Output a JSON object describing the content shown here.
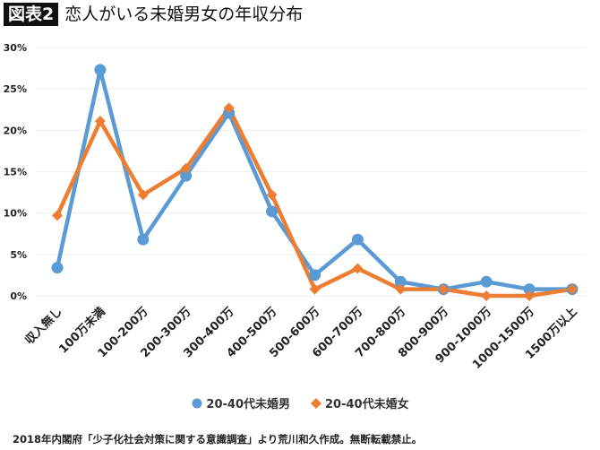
{
  "header": {
    "badge": "図表2",
    "title": "恋人がいる未婚男女の年収分布"
  },
  "footer": "2018年内閣府「少子化社会対策に関する意識調査」より荒川和久作成。無断転載禁止。",
  "chart_data": {
    "type": "line",
    "title": "",
    "xlabel": "",
    "ylabel": "",
    "ylim": [
      0,
      30
    ],
    "yticks": [
      "0%",
      "5%",
      "10%",
      "15%",
      "20%",
      "25%",
      "30%"
    ],
    "grid": true,
    "legend": "bottom",
    "categories": [
      "収入無し",
      "100万未満",
      "100-200万",
      "200-300万",
      "300-400万",
      "400-500万",
      "500-600万",
      "600-700万",
      "700-800万",
      "800-900万",
      "900-1000万",
      "1000-1500万",
      "1500万以上"
    ],
    "series": [
      {
        "name": "20-40代未婚男",
        "color": "#5b9bd5",
        "marker": "circle",
        "values": [
          3.4,
          27.3,
          6.8,
          14.5,
          22.1,
          10.2,
          2.5,
          6.8,
          1.7,
          0.8,
          1.7,
          0.8,
          0.8
        ]
      },
      {
        "name": "20-40代未婚女",
        "color": "#ed7d31",
        "marker": "diamond",
        "values": [
          9.7,
          21.1,
          12.2,
          15.4,
          22.7,
          12.2,
          0.8,
          3.3,
          0.8,
          0.8,
          0.0,
          0.0,
          0.8
        ]
      }
    ]
  }
}
